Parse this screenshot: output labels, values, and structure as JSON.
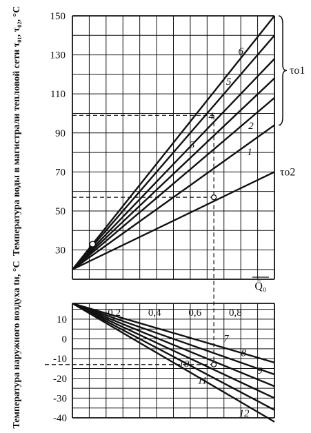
{
  "chart_data": [
    {
      "type": "line",
      "title": "",
      "ylabel": "Температура воды в магистрали тепловой сети τ₀₁, τ₀₂, °C",
      "xlabel": "Q̄₀",
      "xlim": [
        -0.2,
        1.0
      ],
      "ylim": [
        15,
        150
      ],
      "yticks": [
        "30",
        "50",
        "70",
        "90",
        "110",
        "130",
        "150"
      ],
      "ytick_values": [
        30,
        50,
        70,
        90,
        110,
        130,
        150
      ],
      "grid": true,
      "series": [
        {
          "name": "1",
          "x": [
            0.0,
            1.0
          ],
          "y": [
            20,
            94
          ]
        },
        {
          "name": "2",
          "x": [
            0.0,
            1.0
          ],
          "y": [
            20,
            108
          ]
        },
        {
          "name": "3",
          "x": [
            0.0,
            1.0
          ],
          "y": [
            20,
            118
          ]
        },
        {
          "name": "4",
          "x": [
            0.0,
            1.0
          ],
          "y": [
            20,
            128
          ]
        },
        {
          "name": "5",
          "x": [
            0.0,
            1.0
          ],
          "y": [
            20,
            140
          ]
        },
        {
          "name": "6",
          "x": [
            0.0,
            1.0
          ],
          "y": [
            20,
            150
          ]
        },
        {
          "name": "τo2",
          "x": [
            0.0,
            1.0
          ],
          "y": [
            20,
            70
          ]
        }
      ],
      "annotations": {
        "bracket_label": "τo1",
        "tau_o2_label": "τo2",
        "reference_x": 0.7,
        "reference_y_tau_o1": 99,
        "reference_y_tau_o2": 57,
        "cluster_mark_x": 0.1,
        "cluster_mark_y": 33
      }
    },
    {
      "type": "line",
      "title": "",
      "ylabel": "Температура наружного воздуха tн, °C",
      "xlabel": "",
      "xlim": [
        -0.2,
        1.0
      ],
      "ylim": [
        -40,
        18
      ],
      "xticks": [
        "0,2",
        "0,4",
        "0,6",
        "0,8"
      ],
      "xtick_values": [
        0.2,
        0.4,
        0.6,
        0.8
      ],
      "yticks": [
        "10",
        "0",
        "-10",
        "-20",
        "-30",
        "-40"
      ],
      "ytick_values": [
        10,
        0,
        -10,
        -20,
        -30,
        -40
      ],
      "grid": true,
      "series": [
        {
          "name": "7",
          "x": [
            0.0,
            1.0
          ],
          "y": [
            18,
            -12
          ]
        },
        {
          "name": "8",
          "x": [
            0.0,
            1.0
          ],
          "y": [
            18,
            -18
          ]
        },
        {
          "name": "9",
          "x": [
            0.0,
            1.0
          ],
          "y": [
            18,
            -24
          ]
        },
        {
          "name": "10",
          "x": [
            0.0,
            1.0
          ],
          "y": [
            18,
            -30
          ]
        },
        {
          "name": "11",
          "x": [
            0.0,
            1.0
          ],
          "y": [
            18,
            -36
          ]
        },
        {
          "name": "12",
          "x": [
            0.0,
            1.0
          ],
          "y": [
            18,
            -42
          ]
        }
      ],
      "annotations": {
        "reference_x": 0.7,
        "reference_y": -13
      }
    }
  ]
}
